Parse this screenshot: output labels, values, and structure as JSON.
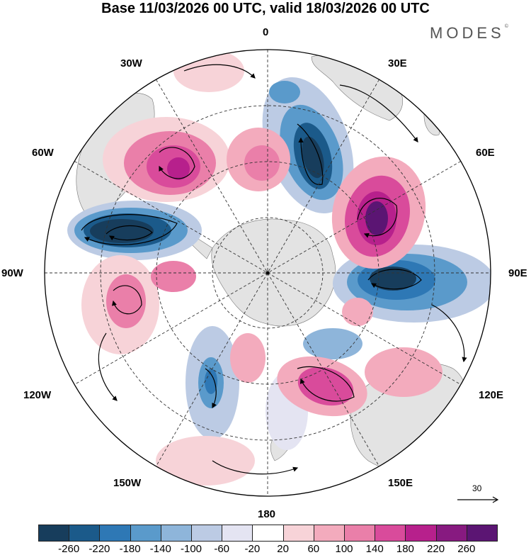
{
  "title": "Base 11/03/2026 00 UTC, valid 18/03/2026 00 UTC",
  "brand": "MODES",
  "brand_mark": "©",
  "longitude_labels": {
    "top": "0",
    "deg30w": "30W",
    "deg30e": "30E",
    "deg60w": "60W",
    "deg60e": "60E",
    "deg90w": "90W",
    "deg90e": "90E",
    "deg120w": "120W",
    "deg120e": "120E",
    "deg150w": "150W",
    "deg150e": "150E",
    "bottom": "180"
  },
  "reference_vector": "30",
  "colorbar": {
    "labels": [
      "-260",
      "-220",
      "-180",
      "-140",
      "-100",
      "-60",
      "-20",
      "20",
      "60",
      "100",
      "140",
      "180",
      "220",
      "260"
    ],
    "colors": [
      "#173d5c",
      "#1b5a8a",
      "#2e78b5",
      "#5a9acb",
      "#8eb5da",
      "#bccbe4",
      "#e4e4f2",
      "#ffffff",
      "#f7d3d8",
      "#f3abbd",
      "#ea7fa9",
      "#d94b9b",
      "#b7208c",
      "#871a80",
      "#5b1573"
    ]
  },
  "colors": {
    "land": "#e1e1e1",
    "circle": "#000000"
  }
}
